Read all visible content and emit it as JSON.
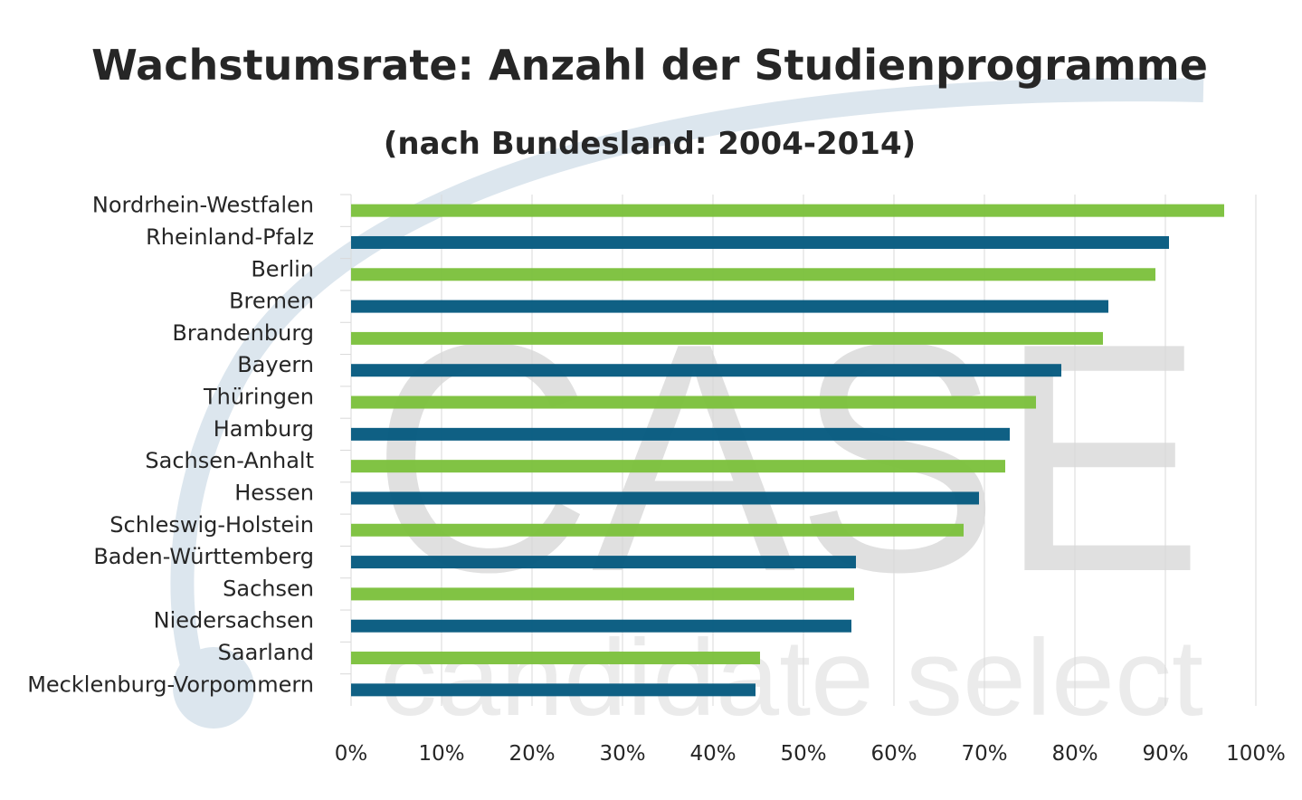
{
  "chart_data": {
    "type": "bar",
    "orientation": "horizontal",
    "title": "Wachstumsrate: Anzahl der Studienprogramme",
    "subtitle": "(nach Bundesland: 2004-2014)",
    "categories": [
      "Nordrhein-Westfalen",
      "Rheinland-Pfalz",
      "Berlin",
      "Bremen",
      "Brandenburg",
      "Bayern",
      "Thüringen",
      "Hamburg",
      "Sachsen-Anhalt",
      "Hessen",
      "Schleswig-Holstein",
      "Baden-Württemberg",
      "Sachsen",
      "Niedersachsen",
      "Saarland",
      "Mecklenburg-Vorpommern"
    ],
    "values": [
      96.5,
      90.4,
      88.9,
      83.7,
      83.1,
      78.5,
      75.7,
      72.8,
      72.3,
      69.4,
      67.7,
      55.8,
      55.6,
      55.3,
      45.2,
      44.7
    ],
    "bar_colors": [
      "#7dc13e",
      "#075b80"
    ],
    "xlim": [
      0,
      100
    ],
    "x_ticks": [
      "0%",
      "10%",
      "20%",
      "30%",
      "40%",
      "50%",
      "60%",
      "70%",
      "80%",
      "90%",
      "100%"
    ],
    "grid": "vertical",
    "xlabel": "",
    "ylabel": ""
  },
  "watermark": {
    "logo": "CASE",
    "tagline": "candidate select",
    "arc_color": "#dce6ee",
    "text_color": "#e0e0e0"
  }
}
